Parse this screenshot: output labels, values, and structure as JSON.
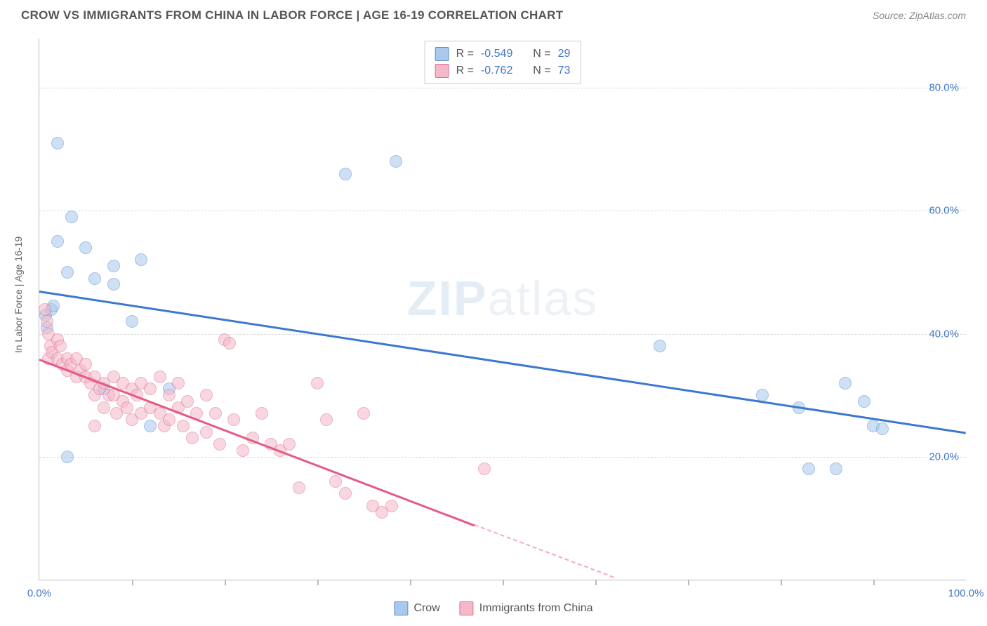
{
  "header": {
    "title": "CROW VS IMMIGRANTS FROM CHINA IN LABOR FORCE | AGE 16-19 CORRELATION CHART",
    "source_prefix": "Source: ",
    "source_name": "ZipAtlas.com"
  },
  "watermark": {
    "zip": "ZIP",
    "atlas": "atlas"
  },
  "chart": {
    "type": "scatter",
    "ylabel": "In Labor Force | Age 16-19",
    "xlim": [
      0,
      100
    ],
    "ylim": [
      0,
      88
    ],
    "x_axis_labels": [
      {
        "x": 0,
        "text": "0.0%"
      },
      {
        "x": 100,
        "text": "100.0%"
      }
    ],
    "y_axis_labels": [
      {
        "y": 20,
        "text": "20.0%"
      },
      {
        "y": 40,
        "text": "40.0%"
      },
      {
        "y": 60,
        "text": "60.0%"
      },
      {
        "y": 80,
        "text": "80.0%"
      }
    ],
    "y_gridlines": [
      20,
      40,
      60,
      80
    ],
    "x_ticks": [
      10,
      20,
      30,
      40,
      50,
      60,
      70,
      80,
      90
    ],
    "grid_color": "#d8d8d8",
    "axis_color": "#bbbbbb",
    "background_color": "#ffffff",
    "point_radius": 9,
    "point_opacity": 0.55,
    "series": [
      {
        "id": "crow",
        "label": "Crow",
        "fill_color": "#a8c8ec",
        "stroke_color": "#5a8fd0",
        "R": "-0.549",
        "N": "29",
        "regression": {
          "x1": 0,
          "y1": 47,
          "x2": 100,
          "y2": 24,
          "color": "#3c78d0",
          "dash": false
        },
        "points": [
          [
            2,
            71
          ],
          [
            3.5,
            59
          ],
          [
            2,
            55
          ],
          [
            5,
            54
          ],
          [
            3,
            50
          ],
          [
            8,
            51
          ],
          [
            11,
            52
          ],
          [
            6,
            49
          ],
          [
            8,
            48
          ],
          [
            0.7,
            43
          ],
          [
            0.8,
            41
          ],
          [
            1.3,
            44
          ],
          [
            1.5,
            44.5
          ],
          [
            10,
            42
          ],
          [
            33,
            66
          ],
          [
            38.5,
            68
          ],
          [
            7,
            31
          ],
          [
            12,
            25
          ],
          [
            3,
            20
          ],
          [
            67,
            38
          ],
          [
            78,
            30
          ],
          [
            82,
            28
          ],
          [
            87,
            32
          ],
          [
            89,
            29
          ],
          [
            90,
            25
          ],
          [
            91,
            24.5
          ],
          [
            83,
            18
          ],
          [
            86,
            18
          ],
          [
            14,
            31
          ]
        ]
      },
      {
        "id": "immigrants",
        "label": "Immigrants from China",
        "fill_color": "#f5b8c8",
        "stroke_color": "#e0708f",
        "R": "-0.762",
        "N": "73",
        "regression": {
          "x1": 0,
          "y1": 36,
          "x2": 47,
          "y2": 9,
          "color": "#e55a85",
          "dash": false
        },
        "regression_extend": {
          "x1": 47,
          "y1": 9,
          "x2": 62,
          "y2": 0.5,
          "color": "#f3a9be",
          "dash": true
        },
        "points": [
          [
            0.6,
            44
          ],
          [
            0.8,
            42
          ],
          [
            1,
            40
          ],
          [
            1.2,
            38
          ],
          [
            1,
            36
          ],
          [
            1.4,
            37
          ],
          [
            2,
            39
          ],
          [
            2.3,
            38
          ],
          [
            2,
            36
          ],
          [
            2.5,
            35
          ],
          [
            3,
            36
          ],
          [
            3,
            34
          ],
          [
            3.4,
            35
          ],
          [
            4,
            36
          ],
          [
            4,
            33
          ],
          [
            4.5,
            34
          ],
          [
            5,
            35
          ],
          [
            5,
            33
          ],
          [
            5.5,
            32
          ],
          [
            6,
            33
          ],
          [
            6,
            30
          ],
          [
            6.5,
            31
          ],
          [
            7,
            32
          ],
          [
            7,
            28
          ],
          [
            7.5,
            30
          ],
          [
            8,
            33
          ],
          [
            8,
            30
          ],
          [
            8.3,
            27
          ],
          [
            9,
            32
          ],
          [
            9,
            29
          ],
          [
            9.5,
            28
          ],
          [
            10,
            31
          ],
          [
            10,
            26
          ],
          [
            10.5,
            30
          ],
          [
            11,
            32
          ],
          [
            11,
            27
          ],
          [
            12,
            31
          ],
          [
            12,
            28
          ],
          [
            13,
            33
          ],
          [
            13,
            27
          ],
          [
            13.5,
            25
          ],
          [
            14,
            30
          ],
          [
            14,
            26
          ],
          [
            15,
            32
          ],
          [
            15,
            28
          ],
          [
            15.5,
            25
          ],
          [
            16,
            29
          ],
          [
            16.5,
            23
          ],
          [
            17,
            27
          ],
          [
            18,
            30
          ],
          [
            18,
            24
          ],
          [
            19,
            27
          ],
          [
            19.5,
            22
          ],
          [
            20,
            39
          ],
          [
            20.5,
            38.5
          ],
          [
            21,
            26
          ],
          [
            22,
            21
          ],
          [
            23,
            23
          ],
          [
            24,
            27
          ],
          [
            25,
            22
          ],
          [
            26,
            21
          ],
          [
            27,
            22
          ],
          [
            28,
            15
          ],
          [
            30,
            32
          ],
          [
            31,
            26
          ],
          [
            32,
            16
          ],
          [
            33,
            14
          ],
          [
            35,
            27
          ],
          [
            36,
            12
          ],
          [
            37,
            11
          ],
          [
            38,
            12
          ],
          [
            48,
            18
          ],
          [
            6,
            25
          ]
        ]
      }
    ],
    "stats_box": {
      "R_label": "R =",
      "N_label": "N ="
    },
    "legend": {
      "items": [
        "crow",
        "immigrants"
      ]
    }
  }
}
